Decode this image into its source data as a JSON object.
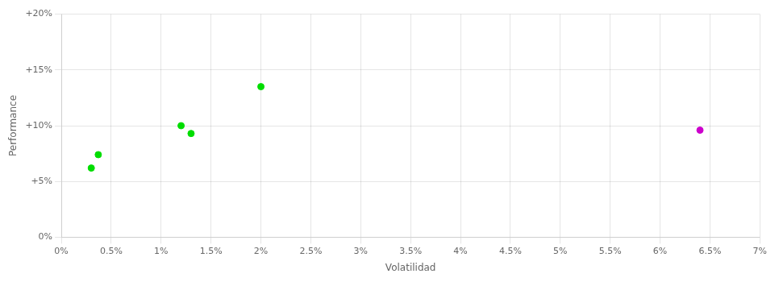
{
  "chart_data": {
    "type": "scatter",
    "xlabel": "Volatilidad",
    "ylabel": "Performance",
    "series": [
      {
        "color": "#00dd00",
        "x": [
          0.0037,
          0.003,
          0.012,
          0.013,
          0.02
        ],
        "values": [
          0.074,
          0.062,
          0.1,
          0.093,
          0.135
        ]
      },
      {
        "color": "#cc00cc",
        "x": [
          0.064
        ],
        "values": [
          0.096
        ]
      }
    ],
    "xlim": [
      0,
      0.07
    ],
    "ylim": [
      0,
      0.2
    ],
    "xticks": [
      {
        "value": 0.0,
        "label": "0%"
      },
      {
        "value": 0.005,
        "label": "0.5%"
      },
      {
        "value": 0.01,
        "label": "1%"
      },
      {
        "value": 0.015,
        "label": "1.5%"
      },
      {
        "value": 0.02,
        "label": "2%"
      },
      {
        "value": 0.025,
        "label": "2.5%"
      },
      {
        "value": 0.03,
        "label": "3%"
      },
      {
        "value": 0.035,
        "label": "3.5%"
      },
      {
        "value": 0.04,
        "label": "4%"
      },
      {
        "value": 0.045,
        "label": "4.5%"
      },
      {
        "value": 0.05,
        "label": "5%"
      },
      {
        "value": 0.055,
        "label": "5.5%"
      },
      {
        "value": 0.06,
        "label": "6%"
      },
      {
        "value": 0.065,
        "label": "6.5%"
      },
      {
        "value": 0.07,
        "label": "7%"
      }
    ],
    "yticks": [
      {
        "value": 0.0,
        "label": "0%"
      },
      {
        "value": 0.05,
        "label": "+5%"
      },
      {
        "value": 0.1,
        "label": "+10%"
      },
      {
        "value": 0.15,
        "label": "+15%"
      },
      {
        "value": 0.2,
        "label": "+20%"
      }
    ],
    "grid": true
  }
}
